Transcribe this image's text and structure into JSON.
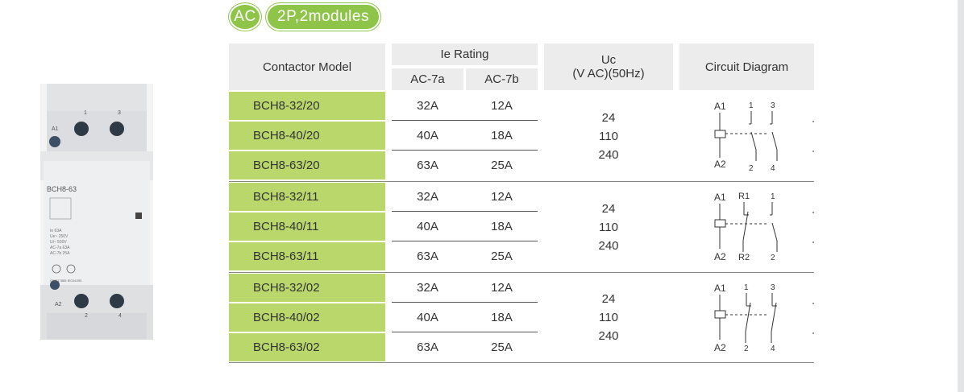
{
  "badges": {
    "ac": "AC",
    "config": "2P,2modules"
  },
  "product": {
    "brand_label": "BCH8-63",
    "terminal_top_1": "1",
    "terminal_top_3": "3",
    "terminal_a1": "A1",
    "terminal_a2": "A2",
    "terminal_bottom_2": "2",
    "terminal_bottom_4": "4",
    "specs": [
      "Ie         63A",
      "Ue~      250V",
      "Ui~       500V",
      "AC-7a     63A",
      "AC-7b     25A"
    ],
    "standards": "GB/T17885   IEC61095"
  },
  "table": {
    "headers": {
      "model": "Contactor Model",
      "ie_rating": "Ie Rating",
      "ac7a": "AC-7a",
      "ac7b": "AC-7b",
      "uc_line1": "Uc",
      "uc_line2": "(V AC)(50Hz)",
      "circuit": "Circuit Diagram"
    },
    "groups": [
      {
        "rows": [
          {
            "model": "BCH8-32/20",
            "ac7a": "32A",
            "ac7b": "12A"
          },
          {
            "model": "BCH8-40/20",
            "ac7a": "40A",
            "ac7b": "18A"
          },
          {
            "model": "BCH8-63/20",
            "ac7a": "63A",
            "ac7b": "25A"
          }
        ],
        "voltages": [
          "24",
          "110",
          "240"
        ],
        "diagram": {
          "a1": "A1",
          "a2": "A2",
          "top_left": "1",
          "top_right": "3",
          "bottom_left": "2",
          "bottom_right": "4"
        }
      },
      {
        "rows": [
          {
            "model": "BCH8-32/11",
            "ac7a": "32A",
            "ac7b": "12A"
          },
          {
            "model": "BCH8-40/11",
            "ac7a": "40A",
            "ac7b": "18A"
          },
          {
            "model": "BCH8-63/11",
            "ac7a": "63A",
            "ac7b": "25A"
          }
        ],
        "voltages": [
          "24",
          "110",
          "240"
        ],
        "diagram": {
          "a1": "A1",
          "a2": "A2",
          "top_left": "R1",
          "top_right": "1",
          "bottom_left": "R2",
          "bottom_right": "2"
        }
      },
      {
        "rows": [
          {
            "model": "BCH8-32/02",
            "ac7a": "32A",
            "ac7b": "12A"
          },
          {
            "model": "BCH8-40/02",
            "ac7a": "40A",
            "ac7b": "18A"
          },
          {
            "model": "BCH8-63/02",
            "ac7a": "63A",
            "ac7b": "25A"
          }
        ],
        "voltages": [
          "24",
          "110",
          "240"
        ],
        "diagram": {
          "a1": "A1",
          "a2": "A2",
          "top_left": "1",
          "top_right": "3",
          "bottom_left": "2",
          "bottom_right": "4"
        }
      }
    ]
  }
}
